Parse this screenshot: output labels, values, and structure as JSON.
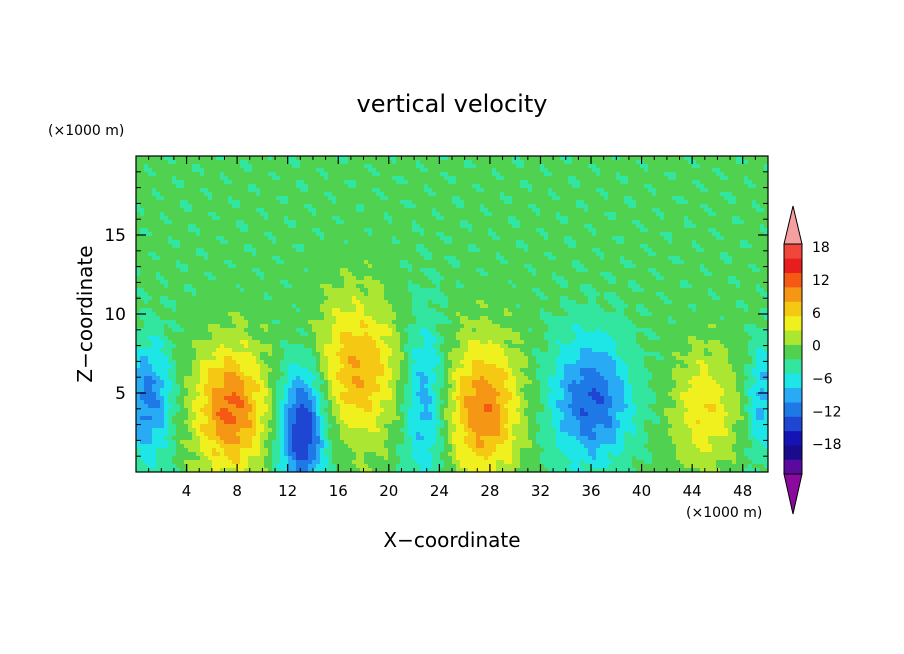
{
  "chart_data": {
    "type": "heatmap",
    "title": "vertical velocity",
    "xlabel": "X−coordinate",
    "ylabel": "Z−coordinate",
    "x_unit": "(×1000 m)",
    "y_unit": "(×1000 m)",
    "xlim": [
      0,
      50
    ],
    "ylim": [
      0,
      20
    ],
    "x_ticks": [
      4,
      8,
      12,
      16,
      20,
      24,
      28,
      32,
      36,
      40,
      44,
      48
    ],
    "x_tick_labels": [
      "4",
      "8",
      "12",
      "16",
      "20",
      "24",
      "28",
      "32",
      "36",
      "40",
      "44",
      "48"
    ],
    "y_ticks": [
      5,
      10,
      15
    ],
    "y_tick_labels": [
      "5",
      "10",
      "15"
    ],
    "colorbar": {
      "levels": [
        -21,
        -18,
        -15,
        -12,
        -9,
        -6,
        -3,
        0,
        3,
        6,
        9,
        12,
        15,
        18,
        21
      ],
      "colors": [
        "#5a0a9e",
        "#1a0a8c",
        "#1414b4",
        "#1e46d2",
        "#1e78e6",
        "#28aaf5",
        "#1ee6e6",
        "#32e6a0",
        "#50d250",
        "#aae632",
        "#f0f01e",
        "#f5c814",
        "#f59614",
        "#f55a14",
        "#e61e1e",
        "#f0463c"
      ],
      "under_color": "#8a0a9e",
      "over_color": "#f5a0a0",
      "tick_labels": [
        "18",
        "12",
        "6",
        "0",
        "−6",
        "−12",
        "−18"
      ],
      "tick_values": [
        18,
        12,
        6,
        0,
        -6,
        -12,
        -18
      ]
    },
    "field_features": [
      {
        "kind": "updraft",
        "x": 7.5,
        "z": 4.0,
        "sx": 2.0,
        "sz": 2.8,
        "peak": 15
      },
      {
        "kind": "updraft",
        "x": 17.5,
        "z": 6.5,
        "sx": 2.4,
        "sz": 3.2,
        "peak": 11
      },
      {
        "kind": "updraft",
        "x": 27.5,
        "z": 4.0,
        "sx": 2.0,
        "sz": 3.0,
        "peak": 14
      },
      {
        "kind": "updraft",
        "x": 45.0,
        "z": 4.0,
        "sx": 1.8,
        "sz": 2.6,
        "peak": 8
      },
      {
        "kind": "downdraft",
        "x": 1.0,
        "z": 4.5,
        "sx": 1.3,
        "sz": 2.6,
        "peak": -11
      },
      {
        "kind": "downdraft",
        "x": 13.2,
        "z": 2.8,
        "sx": 1.3,
        "sz": 2.8,
        "peak": -17
      },
      {
        "kind": "downdraft",
        "x": 22.8,
        "z": 4.5,
        "sx": 1.2,
        "sz": 3.8,
        "peak": -9
      },
      {
        "kind": "downdraft",
        "x": 36.0,
        "z": 4.5,
        "sx": 2.2,
        "sz": 2.8,
        "peak": -13
      },
      {
        "kind": "downdraft",
        "x": 49.5,
        "z": 4.5,
        "sx": 0.8,
        "sz": 2.5,
        "peak": -8
      }
    ]
  }
}
